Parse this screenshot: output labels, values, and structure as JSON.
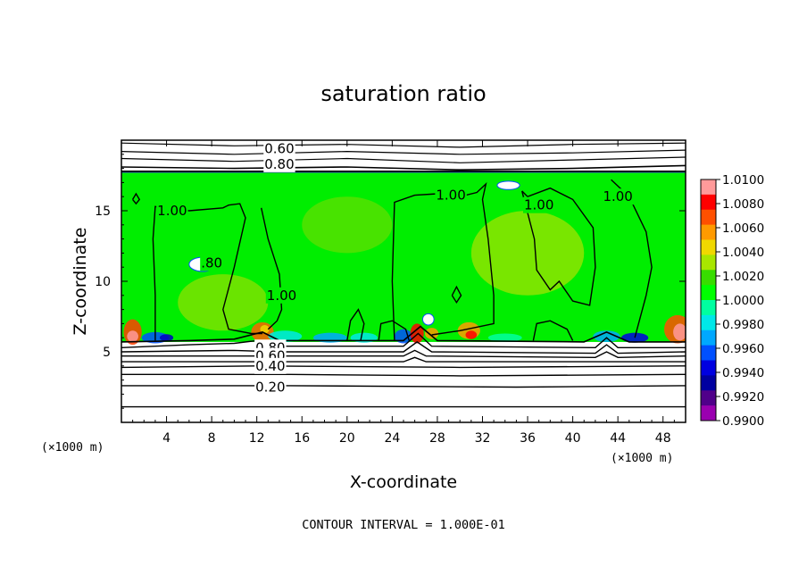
{
  "chart_data": {
    "type": "heatmap",
    "title": "saturation ratio",
    "xlabel": "X-coordinate",
    "ylabel": "Z-coordinate",
    "x_unit_left": "(×1000 m)",
    "x_unit_right": "(×1000 m)",
    "xlim": [
      0,
      50
    ],
    "ylim": [
      0,
      20
    ],
    "x_ticks": [
      4,
      8,
      12,
      16,
      20,
      24,
      28,
      32,
      36,
      40,
      44,
      48
    ],
    "x_tick_labels": [
      "4",
      "8",
      "12",
      "16",
      "20",
      "24",
      "28",
      "32",
      "36",
      "40",
      "44",
      "48"
    ],
    "y_ticks": [
      5,
      10,
      15
    ],
    "y_tick_labels": [
      "5",
      "10",
      "15"
    ],
    "colorbar": {
      "min": 0.99,
      "max": 1.01,
      "labels": [
        "1.0100",
        "1.0080",
        "1.0060",
        "1.0040",
        "1.0020",
        "1.0000",
        "0.9980",
        "0.9960",
        "0.9940",
        "0.9920",
        "0.9900"
      ],
      "colors": [
        "#ff9a9a",
        "#ff0000",
        "#ff5000",
        "#ff9a00",
        "#f0d800",
        "#a8e600",
        "#38dd00",
        "#00ff00",
        "#00ffa0",
        "#00e8e8",
        "#00a8ff",
        "#0050ff",
        "#0000e0",
        "#0000a0",
        "#50008a",
        "#9a00b0"
      ]
    },
    "shaded_layer_z": [
      5.7,
      17.7
    ],
    "background_value": "1.0000",
    "contour_labels": [
      {
        "text": "0.60",
        "x": 14,
        "y": 19.4
      },
      {
        "text": "0.80",
        "x": 14,
        "y": 18.3
      },
      {
        "text": "1.00",
        "x": 4.5,
        "y": 15.0
      },
      {
        "text": "1.00",
        "x": 29.2,
        "y": 16.1
      },
      {
        "text": "1.00",
        "x": 37.0,
        "y": 15.4
      },
      {
        "text": "1.00",
        "x": 44.0,
        "y": 16.0
      },
      {
        "text": "1.00",
        "x": 14.2,
        "y": 9.0
      },
      {
        "text": ".80",
        "x": 8.0,
        "y": 11.3
      },
      {
        "text": "0.80",
        "x": 13.2,
        "y": 5.3
      },
      {
        "text": "0.60",
        "x": 13.2,
        "y": 4.7
      },
      {
        "text": "0.40",
        "x": 13.2,
        "y": 4.0
      },
      {
        "text": "0.20",
        "x": 13.2,
        "y": 2.5
      }
    ],
    "legend": "right",
    "grid": false,
    "footer": "CONTOUR INTERVAL = 1.000E-01"
  }
}
